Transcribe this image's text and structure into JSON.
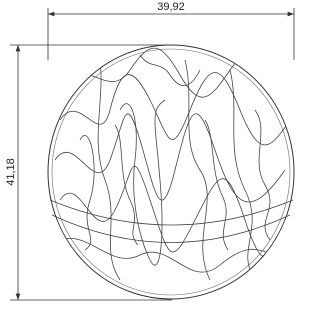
{
  "dimensions": {
    "width": "39,92",
    "height": "41,18"
  }
}
